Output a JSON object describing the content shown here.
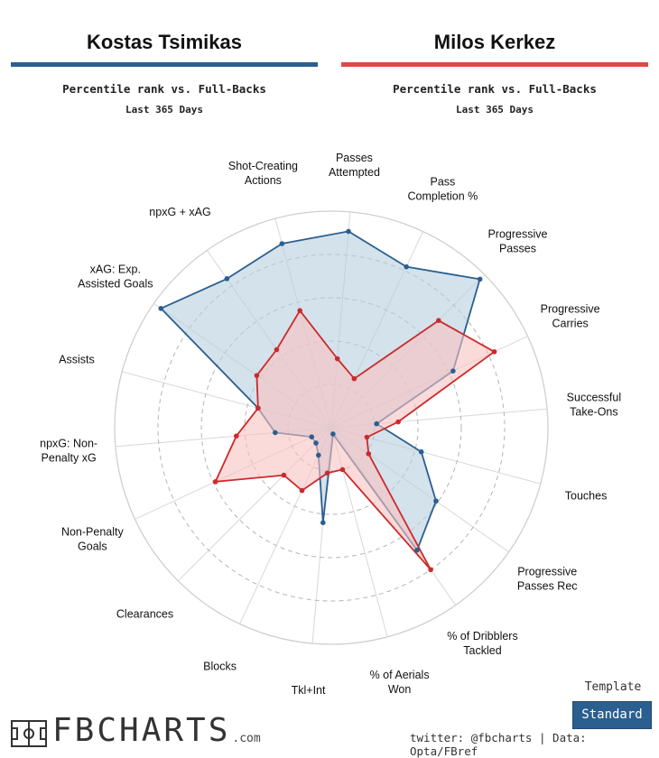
{
  "header": {
    "player1": {
      "name": "Kostas Tsimikas",
      "subtitle": "Percentile rank vs. Full-Backs",
      "period": "Last 365 Days",
      "color": "#2a5f8f"
    },
    "player2": {
      "name": "Milos Kerkez",
      "subtitle": "Percentile rank vs. Full-Backs",
      "period": "Last 365 Days",
      "color": "#e04848"
    }
  },
  "chart_data": {
    "type": "radar",
    "range": [
      0,
      100
    ],
    "grid_rings": [
      20,
      40,
      60,
      80,
      100
    ],
    "axes": [
      [
        "Passes",
        "Attempted"
      ],
      [
        "Pass",
        "Completion %"
      ],
      [
        "Progressive",
        "Passes"
      ],
      [
        "Progressive",
        "Carries"
      ],
      [
        "Successful",
        "Take-Ons"
      ],
      [
        "Touches"
      ],
      [
        "Progressive",
        "Passes Rec"
      ],
      [
        "% of Dribblers",
        "Tackled"
      ],
      [
        "% of Aerials",
        "Won"
      ],
      [
        "Tkl+Int"
      ],
      [
        "Blocks"
      ],
      [
        "Clearances"
      ],
      [
        "Non-Penalty",
        "Goals"
      ],
      [
        "npxG: Non-",
        "Penalty xG"
      ],
      [
        "Assists"
      ],
      [
        "xAG: Exp.",
        "Assisted Goals"
      ],
      [
        "npxG + xAG"
      ],
      [
        "Shot-Creating",
        "Actions"
      ]
    ],
    "series": [
      {
        "name": "Kostas Tsimikas",
        "color": "#2a5f8f",
        "fill": "#b8cfe0",
        "values": [
          91,
          82,
          97,
          62,
          21,
          43,
          59,
          69,
          3,
          44,
          14,
          10,
          10,
          26,
          35,
          96,
          84,
          88
        ]
      },
      {
        "name": "Milos Kerkez",
        "color": "#cc2a2a",
        "fill": "#f8c2c2",
        "values": [
          32,
          25,
          70,
          83,
          31,
          17,
          21,
          80,
          20,
          21,
          32,
          31,
          59,
          44,
          35,
          42,
          44,
          56
        ]
      }
    ]
  },
  "footer": {
    "brand": "FBCHARTS",
    "brand_suffix": ".com",
    "template_label": "Template",
    "template_value": "Standard",
    "credit": "twitter: @fbcharts | Data: Opta/FBref"
  }
}
